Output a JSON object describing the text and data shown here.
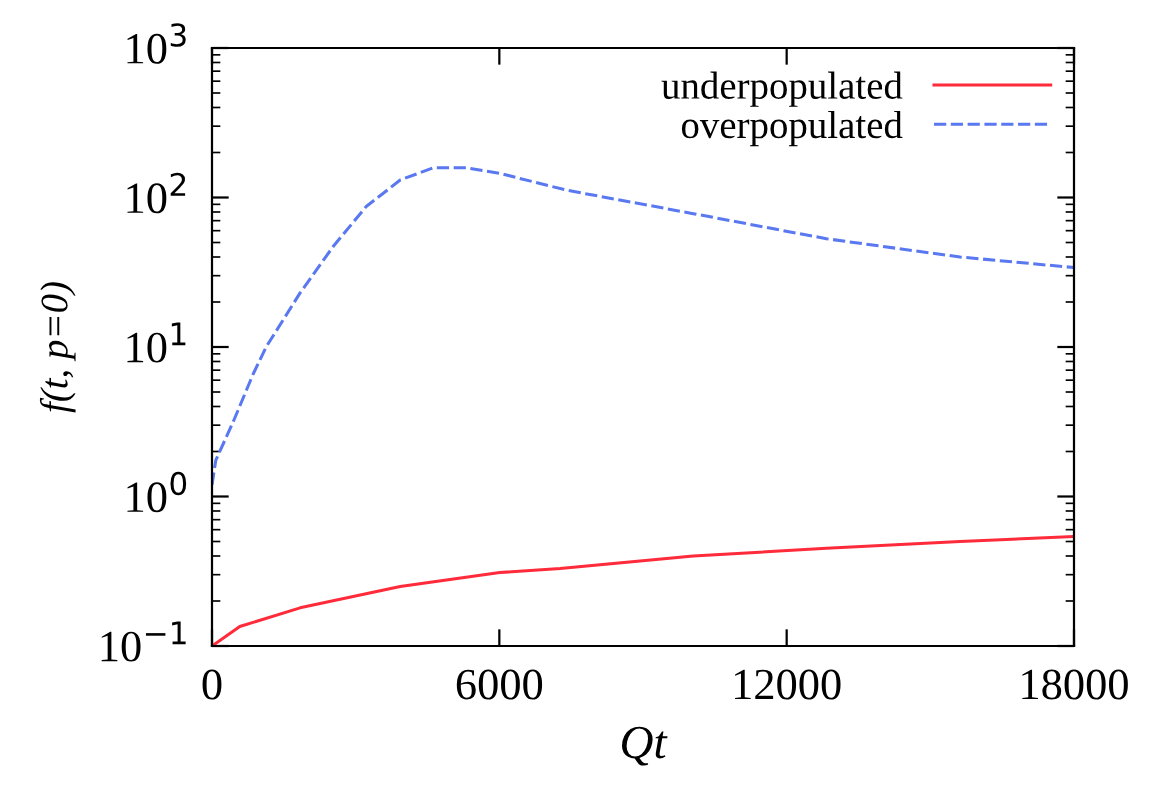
{
  "chart_data": {
    "type": "line",
    "xlabel": "Qt",
    "ylabel": "f(t, p=0)",
    "log": "y",
    "xlim": [
      0,
      18000
    ],
    "xticks": [
      0,
      6000,
      12000,
      18000
    ],
    "ylim": [
      0.1,
      1000
    ],
    "yticks": [
      {
        "value": 0.1,
        "label": "10$^{−1}$"
      },
      {
        "value": 1,
        "label": "10$^{0}$"
      },
      {
        "value": 10,
        "label": "10$^{1}$"
      },
      {
        "value": 100,
        "label": "10$^{2}$"
      },
      {
        "value": 1000,
        "label": "10$^{3}$"
      }
    ],
    "grid": false,
    "legend": "top right",
    "marker": "none",
    "series": [
      {
        "name": "underpopulated",
        "color": "#ff2a3a",
        "line_style": "solid",
        "x": [
          0,
          580,
          1840,
          3930,
          6010,
          7270,
          10050,
          12830,
          15620,
          18000
        ],
        "values": [
          0.1,
          0.135,
          0.18,
          0.25,
          0.31,
          0.33,
          0.4,
          0.45,
          0.5,
          0.54
        ]
      },
      {
        "name": "overpopulated",
        "color": "#5a78f0",
        "line_style": "dashed",
        "x": [
          0,
          80,
          450,
          860,
          1130,
          1840,
          2530,
          3220,
          3930,
          4620,
          5310,
          6010,
          7400,
          10050,
          12830,
          15620,
          18000
        ],
        "values": [
          1.2,
          1.75,
          3.2,
          6.6,
          10,
          23,
          47,
          87,
          131,
          158,
          158,
          145,
          112,
          78,
          53,
          40,
          34
        ]
      }
    ]
  }
}
